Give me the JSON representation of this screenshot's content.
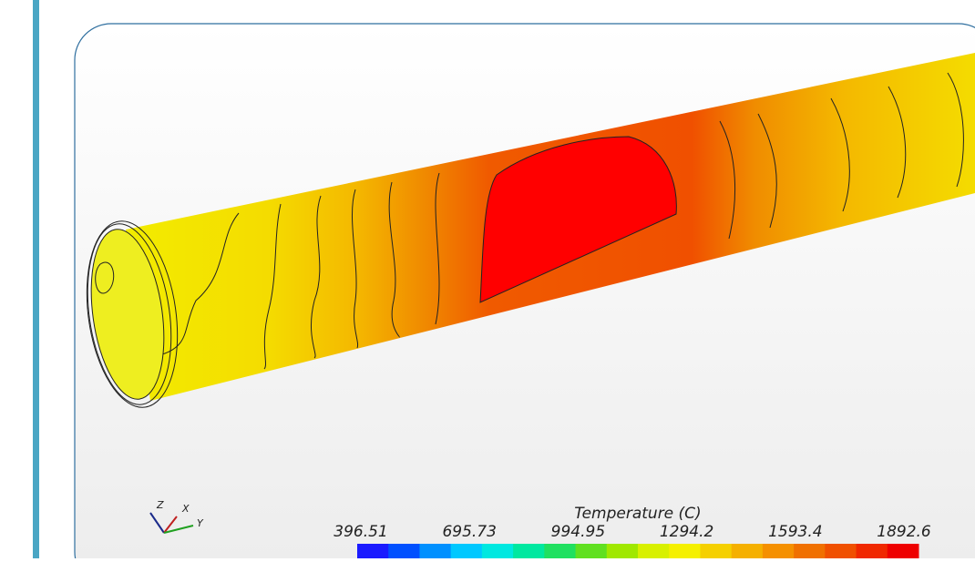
{
  "colorbar": {
    "title": "Temperature (C)",
    "ticks": [
      396.51,
      695.73,
      994.95,
      1294.2,
      1593.4,
      1892.6
    ],
    "colors": [
      "#1a1aff",
      "#0050ff",
      "#0090ff",
      "#00c8ff",
      "#00e8e0",
      "#00e8a0",
      "#20e060",
      "#60e020",
      "#a0e800",
      "#d8f000",
      "#f5f000",
      "#f5d000",
      "#f5b000",
      "#f59000",
      "#f07000",
      "#f05000",
      "#f02800",
      "#ee0000"
    ]
  },
  "axes_triad": {
    "labels": [
      "Z",
      "X",
      "Y"
    ]
  }
}
